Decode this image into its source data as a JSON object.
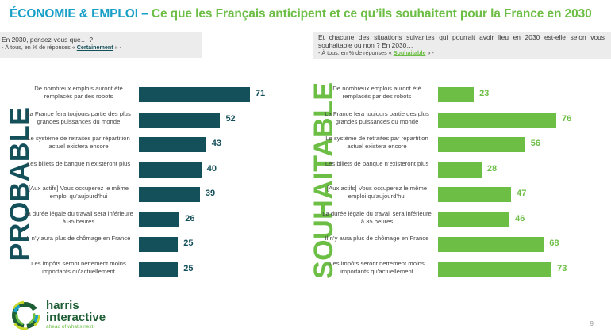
{
  "title": {
    "part1": "ÉCONOMIE & EMPLOI –",
    "part2": " Ce que les Français anticipent et ce qu’ils souhaitent pour la France en 2030"
  },
  "left_question": {
    "question": "En 2030, pensez-vous que… ?",
    "sub_prefix": "- À tous, en % de réponses « ",
    "keyword": "Certainement",
    "sub_suffix": " » -"
  },
  "right_question": {
    "question": "Et chacune des situations suivantes qui pourrait avoir lieu en 2030 est-elle selon vous souhaitable ou non ? En 2030…",
    "sub_prefix": "- À tous, en % de réponses « ",
    "keyword": "Souhaitable",
    "sub_suffix": " » -"
  },
  "colors": {
    "dark_teal": "#14505a",
    "green": "#6cbe45",
    "title_blue": "#1aa0c8"
  },
  "chart_data": [
    {
      "type": "bar",
      "orientation": "horizontal",
      "title": "PROBABLE",
      "categories": [
        "De nombreux emplois auront été remplacés par des robots",
        "La France fera toujours partie des plus grandes puissances du monde",
        "Le système de retraites par répartition actuel existera encore",
        "Les billets de banque n’existeront plus",
        "[Aux actifs] Vous occuperez le même emploi qu’aujourd’hui",
        "La durée légale du travail sera inférieure à 35 heures",
        "Il n’y aura plus de chômage en France",
        "Les impôts seront nettement moins importants qu’actuellement"
      ],
      "values": [
        71,
        52,
        43,
        40,
        39,
        26,
        25,
        25
      ],
      "unit": "%",
      "color": "#14505a",
      "xlim": [
        0,
        100
      ],
      "grid": false
    },
    {
      "type": "bar",
      "orientation": "horizontal",
      "title": "SOUHAITABLE",
      "categories": [
        "De nombreux emplois auront été remplacés par des robots",
        "La France fera toujours partie des plus grandes puissances du monde",
        "Le système de retraites par répartition actuel existera encore",
        "Les billets de banque n’existeront plus",
        "[Aux actifs] Vous occuperez le même emploi qu’aujourd’hui",
        "La durée légale du travail sera inférieure à 35 heures",
        "Il n’y aura plus de chômage en France",
        "Les impôts seront nettement moins importants qu’actuellement"
      ],
      "values": [
        23,
        76,
        56,
        28,
        47,
        46,
        68,
        73
      ],
      "unit": "%",
      "color": "#6cbe45",
      "xlim": [
        0,
        100
      ],
      "grid": false
    }
  ],
  "footer": {
    "brand_line1": "harris",
    "brand_line2": "interactive",
    "tagline": "ahead of what's next",
    "page_number": "9"
  }
}
